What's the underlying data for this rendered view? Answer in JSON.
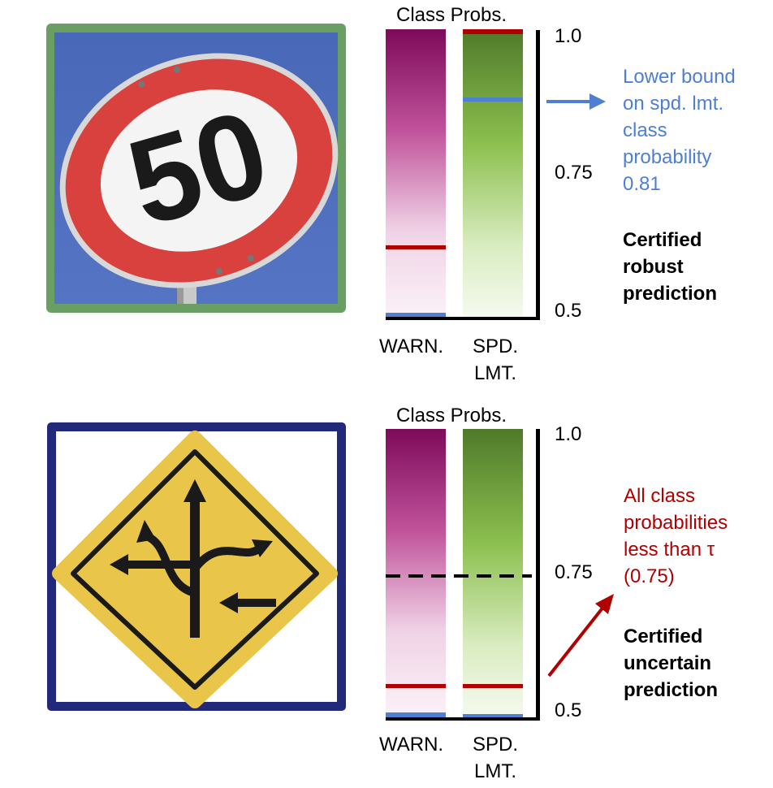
{
  "panels": [
    {
      "column_title": "Class Probs.",
      "class_labels": [
        "WARN.",
        "SPD.\nLMT."
      ],
      "axis_ticks": [
        "1.0",
        "0.75",
        "0.5"
      ],
      "annotation_lines": [
        "Lower bound",
        "on spd. lmt.",
        "class",
        "probability",
        "0.81"
      ],
      "annotation_color": "#4f7fd1",
      "result_lines": [
        "Certified",
        "robust",
        "prediction"
      ],
      "bounds": {
        "warn": {
          "upper": 0.6,
          "lower": 0.5
        },
        "spd_lmt": {
          "upper": 1.0,
          "lower": 0.81
        }
      }
    },
    {
      "column_title": "Class Probs.",
      "class_labels": [
        "WARN.",
        "SPD.\nLMT."
      ],
      "axis_ticks": [
        "1.0",
        "0.75",
        "0.5"
      ],
      "annotation_lines": [
        "All class",
        "probabilities",
        "less than τ",
        "(0.75)"
      ],
      "annotation_color": "#b00000",
      "result_lines": [
        "Certified",
        "uncertain",
        "prediction"
      ],
      "threshold": 0.75,
      "bounds": {
        "warn": {
          "upper": 0.54,
          "lower": 0.5
        },
        "spd_lmt": {
          "upper": 0.54,
          "lower": 0.5
        }
      }
    }
  ],
  "sign_top": {
    "text": "50",
    "icon": "speed-limit-50-sign-icon"
  },
  "sign_bottom": {
    "icon": "multiple-curves-warning-sign-icon"
  },
  "colors": {
    "warn_bar_top": "#7d0a5a",
    "spd_bar_top": "#4f7a2a",
    "upper_bound": "#b00000",
    "lower_bound": "#4f7fd1",
    "frame_top": "#6a9f63",
    "frame_bottom": "#22287a"
  }
}
